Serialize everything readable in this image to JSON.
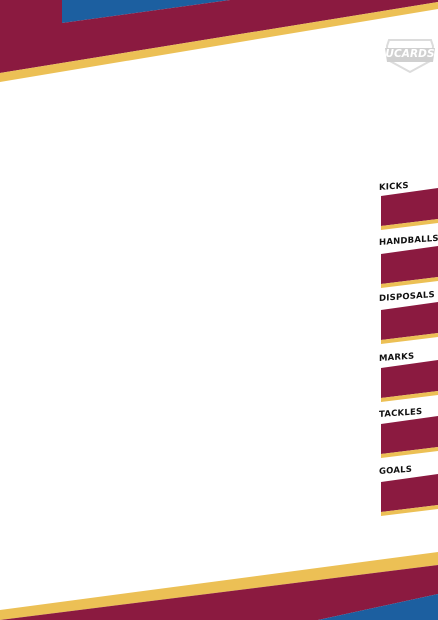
{
  "brand": {
    "logo_text": "UCARDS"
  },
  "colors": {
    "maroon": "#8b1a40",
    "gold": "#ecc055",
    "blue": "#1c5fa0",
    "background": "#ffffff",
    "label": "#111111"
  },
  "stats": [
    {
      "label": "KICKS",
      "value": ""
    },
    {
      "label": "HANDBALLS",
      "value": ""
    },
    {
      "label": "DISPOSALS",
      "value": ""
    },
    {
      "label": "MARKS",
      "value": ""
    },
    {
      "label": "TACKLES",
      "value": ""
    },
    {
      "label": "GOALS",
      "value": ""
    }
  ]
}
